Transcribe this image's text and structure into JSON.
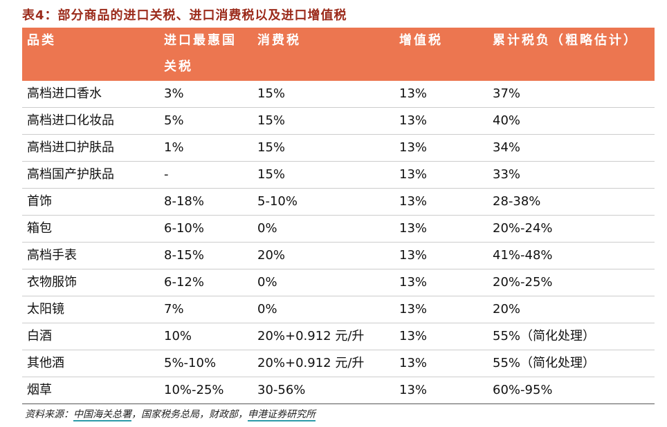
{
  "title": "表4：部分商品的进口关税、进口消费税以及进口增值税",
  "table": {
    "header": [
      "品类",
      "进口最惠国关税",
      "消费税",
      "增值税",
      "累计税负（粗略估计）"
    ],
    "rows": [
      [
        "高档进口香水",
        "3%",
        "15%",
        "13%",
        "37%"
      ],
      [
        "高档进口化妆品",
        "5%",
        "15%",
        "13%",
        "40%"
      ],
      [
        "高档进口护肤品",
        "1%",
        "15%",
        "13%",
        "34%"
      ],
      [
        "高档国产护肤品",
        "-",
        "15%",
        "13%",
        "33%"
      ],
      [
        "首饰",
        "8-18%",
        "5-10%",
        "13%",
        "28-38%"
      ],
      [
        "箱包",
        "6-10%",
        "0%",
        "13%",
        "20%-24%"
      ],
      [
        "高档手表",
        "8-15%",
        "20%",
        "13%",
        "41%-48%"
      ],
      [
        "衣物服饰",
        "6-12%",
        "0%",
        "13%",
        "20%-25%"
      ],
      [
        "太阳镜",
        "7%",
        "0%",
        "13%",
        "20%"
      ],
      [
        "白酒",
        "10%",
        "20%+0.912 元/升",
        "13%",
        "55%（简化处理）"
      ],
      [
        "其他酒",
        "5%-10%",
        "20%+0.912 元/升",
        "13%",
        "55%（简化处理）"
      ],
      [
        "烟草",
        "10%-25%",
        "30-56%",
        "13%",
        "60%-95%"
      ]
    ]
  },
  "source": [
    "资料来源：",
    "中国海关总署",
    "，国家税务总局，财政部，",
    "申港证券研究所"
  ]
}
